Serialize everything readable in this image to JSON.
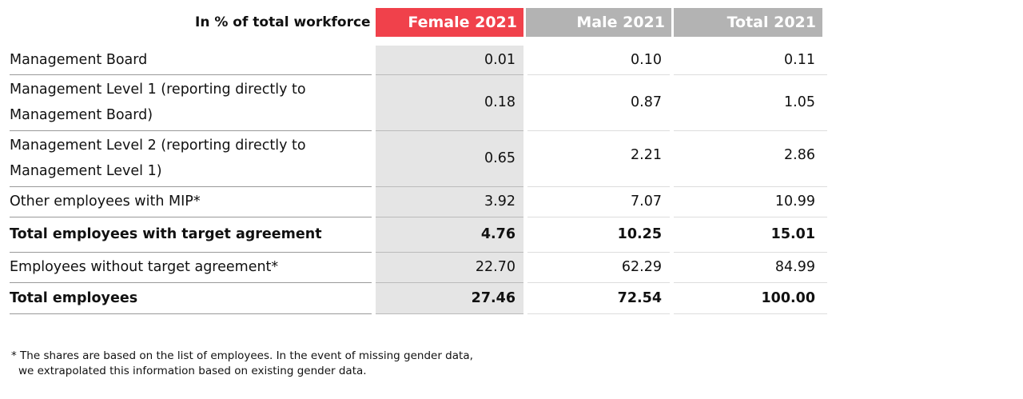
{
  "header": {
    "title": "In % of total workforce",
    "columns": [
      "Female 2021",
      "Male 2021",
      "Total 2021"
    ]
  },
  "table": {
    "rows": [
      {
        "label": "Management Board",
        "values": [
          "0.01",
          "0.10",
          "0.11"
        ],
        "bold": false
      },
      {
        "label": "Management Level 1 (reporting directly to Management Board)",
        "values": [
          "0.18",
          "0.87",
          "1.05"
        ],
        "bold": false
      },
      {
        "label": "Management Level 2 (reporting directly to Management Level 1)",
        "values": [
          "0.65",
          "2.21",
          "2.86"
        ],
        "bold": false
      },
      {
        "label": "Other employees with MIP*",
        "values": [
          "3.92",
          "7.07",
          "10.99"
        ],
        "bold": false
      },
      {
        "label": "Total employees with target agreement",
        "values": [
          "4.76",
          "10.25",
          "15.01"
        ],
        "bold": true
      },
      {
        "label": "Employees without target agreement*",
        "values": [
          "22.70",
          "62.29",
          "84.99"
        ],
        "bold": false
      },
      {
        "label": "Total employees",
        "values": [
          "27.46",
          "72.54",
          "100.00"
        ],
        "bold": true
      }
    ]
  },
  "footnote": [
    "* The shares are based on the list of employees. In the event of missing gender data,",
    "we extrapolated this information based on existing gender data."
  ]
}
